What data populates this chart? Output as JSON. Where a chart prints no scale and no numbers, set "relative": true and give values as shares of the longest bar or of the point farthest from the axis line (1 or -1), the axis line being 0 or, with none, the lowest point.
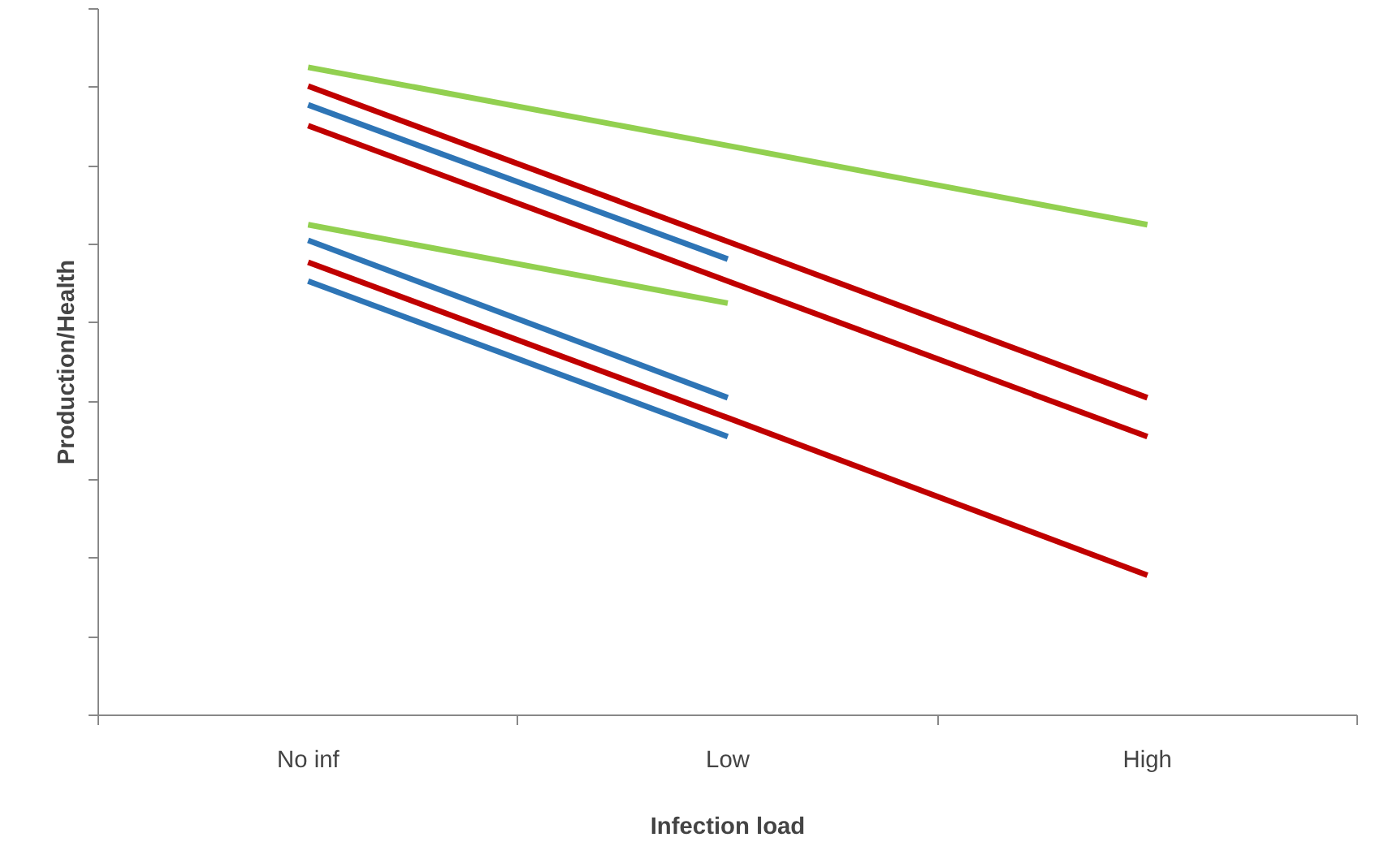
{
  "chart_data": {
    "type": "line",
    "relative": true,
    "xlabel": "Infection load",
    "ylabel": "Production/Health",
    "categories": [
      "No inf",
      "Low",
      "High"
    ],
    "series": [
      {
        "color": "#92d050",
        "values": [
          1,
          0.879,
          0.757
        ]
      },
      {
        "color": "#c00000",
        "values": [
          0.971,
          0.731,
          0.49
        ]
      },
      {
        "color": "#2e75b6",
        "values": [
          0.942,
          0.704,
          null
        ]
      },
      {
        "color": "#c00000",
        "values": [
          0.91,
          0.67,
          0.43
        ]
      },
      {
        "color": "#92d050",
        "values": [
          0.757,
          0.636,
          null
        ]
      },
      {
        "color": "#2e75b6",
        "values": [
          0.733,
          0.49,
          null
        ]
      },
      {
        "color": "#c00000",
        "values": [
          0.699,
          0.459,
          0.216
        ]
      },
      {
        "color": "#2e75b6",
        "values": [
          0.67,
          0.43,
          null
        ]
      }
    ],
    "grid": false,
    "marker": "none",
    "line_style": "solid"
  }
}
